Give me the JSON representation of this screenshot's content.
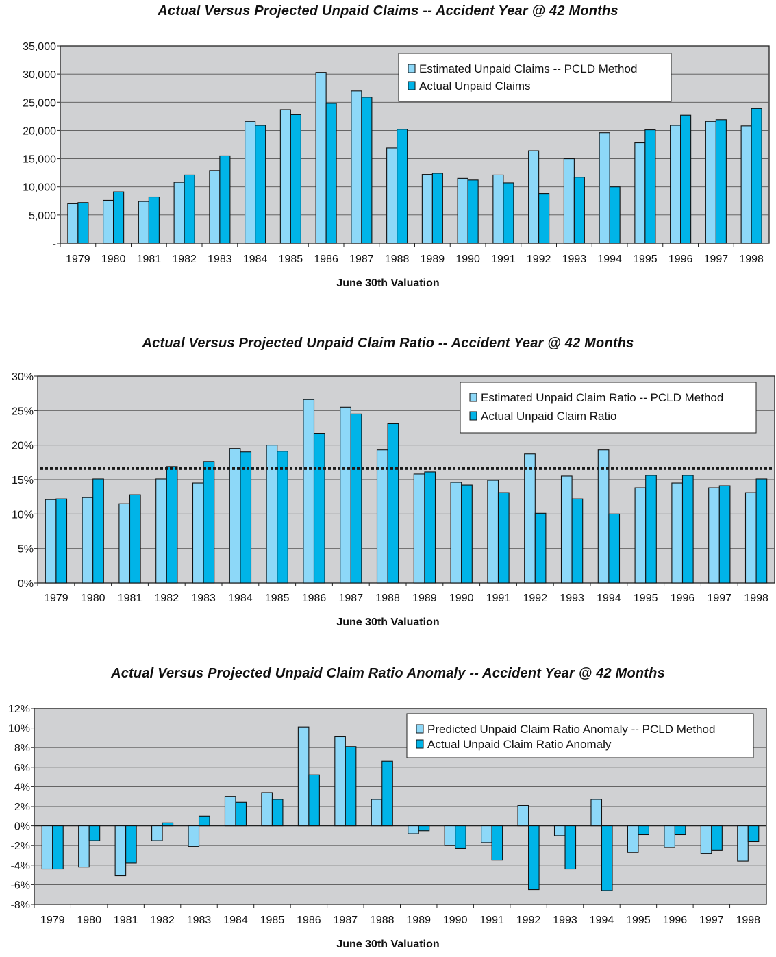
{
  "chart_data": [
    {
      "type": "bar",
      "title": "Actual Versus Projected Unpaid Claims -- Accident Year @ 42 Months",
      "xlabel": "June 30th Valuation",
      "ylabel": "",
      "categories": [
        "1979",
        "1980",
        "1981",
        "1982",
        "1983",
        "1984",
        "1985",
        "1986",
        "1987",
        "1988",
        "1989",
        "1990",
        "1991",
        "1992",
        "1993",
        "1994",
        "1995",
        "1996",
        "1997",
        "1998"
      ],
      "series": [
        {
          "name": "Estimated Unpaid Claims -- PCLD Method",
          "color": "#8dd8f8",
          "values": [
            7000,
            7600,
            7400,
            10800,
            12900,
            21600,
            23700,
            30300,
            27000,
            16900,
            12200,
            11500,
            12100,
            16400,
            15000,
            19600,
            17800,
            20900,
            21600,
            20800
          ]
        },
        {
          "name": "Actual Unpaid Claims",
          "color": "#00b4e8",
          "values": [
            7200,
            9100,
            8200,
            12100,
            15500,
            20900,
            22800,
            24800,
            25900,
            20200,
            12400,
            11200,
            10700,
            8800,
            11700,
            10000,
            20100,
            22700,
            21900,
            23900
          ]
        }
      ],
      "ylim": [
        0,
        35000
      ],
      "yticks": [
        "-",
        "5,000",
        "10,000",
        "15,000",
        "20,000",
        "25,000",
        "30,000",
        "35,000"
      ],
      "ytick_values": [
        0,
        5000,
        10000,
        15000,
        20000,
        25000,
        30000,
        35000
      ],
      "grid": true,
      "legend": "top-right"
    },
    {
      "type": "bar",
      "title": "Actual Versus Projected Unpaid Claim Ratio -- Accident Year @ 42 Months",
      "xlabel": "June 30th Valuation",
      "ylabel": "",
      "categories": [
        "1979",
        "1980",
        "1981",
        "1982",
        "1983",
        "1984",
        "1985",
        "1986",
        "1987",
        "1988",
        "1989",
        "1990",
        "1991",
        "1992",
        "1993",
        "1994",
        "1995",
        "1996",
        "1997",
        "1998"
      ],
      "series": [
        {
          "name": "Estimated Unpaid Claim Ratio -- PCLD Method",
          "color": "#8dd8f8",
          "values": [
            12.1,
            12.4,
            11.5,
            15.1,
            14.5,
            19.5,
            20.0,
            26.6,
            25.5,
            19.3,
            15.8,
            14.6,
            14.9,
            18.7,
            15.5,
            19.3,
            13.8,
            14.5,
            13.8,
            13.1
          ]
        },
        {
          "name": "Actual Unpaid Claim Ratio",
          "color": "#00b4e8",
          "values": [
            12.2,
            15.1,
            12.8,
            16.9,
            17.6,
            19.0,
            19.1,
            21.7,
            24.5,
            23.1,
            16.1,
            14.2,
            13.1,
            10.1,
            12.2,
            10.0,
            15.6,
            15.6,
            14.1,
            15.1
          ]
        }
      ],
      "reference_line": 16.6,
      "ylim": [
        0,
        30
      ],
      "yticks": [
        "0%",
        "5%",
        "10%",
        "15%",
        "20%",
        "25%",
        "30%"
      ],
      "ytick_values": [
        0,
        5,
        10,
        15,
        20,
        25,
        30
      ],
      "grid": true,
      "legend": "top-right"
    },
    {
      "type": "bar",
      "title": "Actual Versus Projected Unpaid Claim Ratio Anomaly -- Accident Year @ 42 Months",
      "xlabel": "June 30th Valuation",
      "ylabel": "",
      "categories": [
        "1979",
        "1980",
        "1981",
        "1982",
        "1983",
        "1984",
        "1985",
        "1986",
        "1987",
        "1988",
        "1989",
        "1990",
        "1991",
        "1992",
        "1993",
        "1994",
        "1995",
        "1996",
        "1997",
        "1998"
      ],
      "series": [
        {
          "name": "Predicted Unpaid Claim Ratio Anomaly -- PCLD Method",
          "color": "#8dd8f8",
          "values": [
            -4.4,
            -4.2,
            -5.1,
            -1.5,
            -2.1,
            3.0,
            3.4,
            10.1,
            9.1,
            2.7,
            -0.8,
            -2.0,
            -1.7,
            2.1,
            -1.0,
            2.7,
            -2.7,
            -2.2,
            -2.8,
            -3.6
          ]
        },
        {
          "name": "Actual Unpaid Claim Ratio Anomaly",
          "color": "#00b4e8",
          "values": [
            -4.4,
            -1.5,
            -3.8,
            0.3,
            1.0,
            2.4,
            2.7,
            5.2,
            8.1,
            6.6,
            -0.5,
            -2.3,
            -3.5,
            -6.5,
            -4.4,
            -6.6,
            -0.9,
            -0.9,
            -2.5,
            -1.6
          ]
        }
      ],
      "ylim": [
        -8,
        12
      ],
      "yticks": [
        "-8%",
        "-6%",
        "-4%",
        "-2%",
        "0%",
        "2%",
        "4%",
        "6%",
        "8%",
        "10%",
        "12%"
      ],
      "ytick_values": [
        -8,
        -6,
        -4,
        -2,
        0,
        2,
        4,
        6,
        8,
        10,
        12
      ],
      "grid": true,
      "legend": "top-right"
    }
  ]
}
